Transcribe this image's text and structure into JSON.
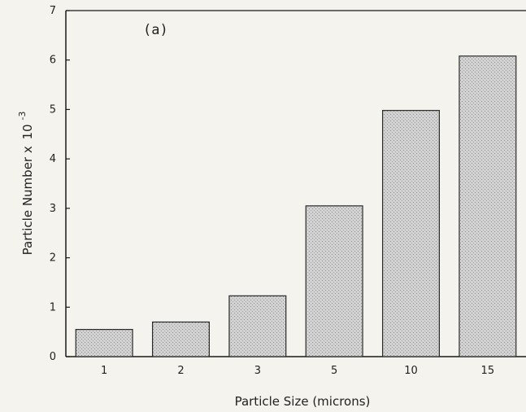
{
  "chart_data": {
    "type": "bar",
    "panel_label": "(a)",
    "xlabel": "Particle Size (microns)",
    "ylabel": {
      "text": "Particle Number x",
      "base": "10",
      "exponent": "-3"
    },
    "categories": [
      "1",
      "2",
      "3",
      "5",
      "10",
      "15"
    ],
    "values": [
      0.55,
      0.7,
      1.23,
      3.05,
      4.98,
      6.08
    ],
    "ylim": [
      0,
      7
    ],
    "yticks": [
      "0",
      "1",
      "2",
      "3",
      "4",
      "5",
      "6",
      "7"
    ],
    "grid": false,
    "colors": {
      "bar_fill": "#cfcfcf",
      "bar_stroke": "#2a2a2a",
      "axis": "#1a1a1a",
      "background": "#f4f3ee"
    }
  }
}
